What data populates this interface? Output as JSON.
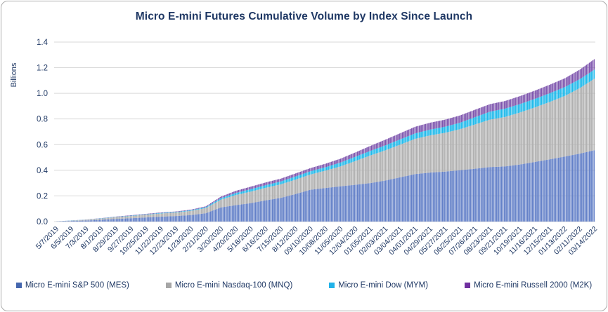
{
  "card": {
    "title": "Micro E-mini Futures Cumulative Volume by Index Since Launch"
  },
  "colors": {
    "title_text": "#1f3864",
    "axis_text": "#1f3864",
    "gridline": "#d9d9d9",
    "card_border": "#ababab",
    "background": "#ffffff"
  },
  "chart_data": {
    "type": "area",
    "stacked": true,
    "title": "Micro E-mini Futures Cumulative Volume by Index Since Launch",
    "xlabel": "",
    "ylabel": "Billions",
    "ylim": [
      0,
      1.4
    ],
    "ytick_step": 0.2,
    "yticks": [
      "0.0",
      "0.2",
      "0.4",
      "0.6",
      "0.8",
      "1.0",
      "1.2",
      "1.4"
    ],
    "grid": "horizontal",
    "legend_position": "bottom",
    "bar_texture": "thin-vertical-bars",
    "categories": [
      "5/7/2019",
      "6/5/2019",
      "7/3/2019",
      "8/1/2019",
      "8/29/2019",
      "9/27/2019",
      "10/25/2019",
      "11/22/2019",
      "12/23/2019",
      "1/23/2020",
      "2/21/2020",
      "3/20/2020",
      "4/20/2020",
      "5/18/2020",
      "6/16/2020",
      "7/15/2020",
      "8/12/2020",
      "09/10/2020",
      "10/08/2020",
      "11/05/2020",
      "12/04/2020",
      "01/05/2021",
      "02/03/2021",
      "03/04/2021",
      "04/01/2021",
      "04/29/2021",
      "05/27/2021",
      "06/25/2021",
      "07/26/2021",
      "08/23/2021",
      "09/21/2021",
      "10/19/2021",
      "11/16/2021",
      "12/15/2021",
      "01/13/2022",
      "02/11/2022",
      "03/14/2022"
    ],
    "series": [
      {
        "name": "Micro E-mini S&P 500 (MES)",
        "color": "#6380c8",
        "legend_color": "#4466ae",
        "values": [
          0.001,
          0.005,
          0.009,
          0.014,
          0.021,
          0.026,
          0.032,
          0.038,
          0.043,
          0.051,
          0.065,
          0.11,
          0.128,
          0.143,
          0.165,
          0.185,
          0.215,
          0.248,
          0.262,
          0.275,
          0.287,
          0.3,
          0.32,
          0.345,
          0.37,
          0.382,
          0.39,
          0.4,
          0.412,
          0.425,
          0.43,
          0.445,
          0.465,
          0.485,
          0.507,
          0.53,
          0.557
        ]
      },
      {
        "name": "Micro E-mini Nasdaq-100 (MNQ)",
        "color": "#b0b0b0",
        "legend_color": "#a6a6a6",
        "values": [
          0.0,
          0.002,
          0.005,
          0.009,
          0.014,
          0.017,
          0.022,
          0.025,
          0.028,
          0.032,
          0.04,
          0.06,
          0.078,
          0.09,
          0.098,
          0.105,
          0.112,
          0.119,
          0.135,
          0.155,
          0.185,
          0.215,
          0.235,
          0.255,
          0.275,
          0.29,
          0.302,
          0.32,
          0.345,
          0.37,
          0.385,
          0.405,
          0.425,
          0.448,
          0.472,
          0.51,
          0.558
        ]
      },
      {
        "name": "Micro E-mini Dow (MYM)",
        "color": "#1fb9ea",
        "legend_color": "#21b2e9",
        "values": [
          0.0,
          0.001,
          0.001,
          0.002,
          0.002,
          0.003,
          0.003,
          0.004,
          0.004,
          0.005,
          0.007,
          0.012,
          0.016,
          0.019,
          0.021,
          0.022,
          0.024,
          0.025,
          0.027,
          0.03,
          0.033,
          0.036,
          0.039,
          0.041,
          0.043,
          0.045,
          0.047,
          0.051,
          0.057,
          0.062,
          0.065,
          0.066,
          0.067,
          0.068,
          0.069,
          0.07,
          0.071
        ]
      },
      {
        "name": "Micro E-mini Russell 2000 (M2K)",
        "color": "#7e55ae",
        "legend_color": "#7030a0",
        "values": [
          0.0,
          0.001,
          0.001,
          0.002,
          0.002,
          0.003,
          0.003,
          0.004,
          0.004,
          0.005,
          0.007,
          0.012,
          0.017,
          0.02,
          0.021,
          0.022,
          0.024,
          0.025,
          0.027,
          0.03,
          0.034,
          0.039,
          0.044,
          0.048,
          0.052,
          0.054,
          0.056,
          0.057,
          0.058,
          0.059,
          0.06,
          0.062,
          0.064,
          0.066,
          0.069,
          0.074,
          0.082
        ]
      }
    ]
  }
}
